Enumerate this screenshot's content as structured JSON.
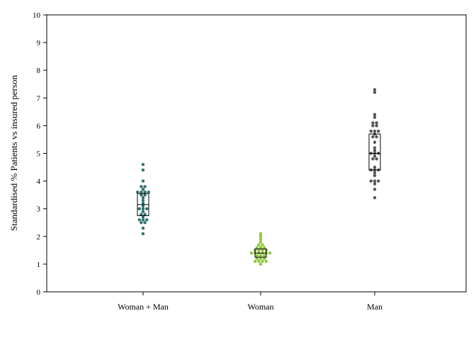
{
  "chart_data": {
    "type": "scatter",
    "subtype": "beeswarm-with-boxplot",
    "title": "",
    "xlabel": "",
    "ylabel": "Standardised % Patients vs insured person",
    "ylim": [
      0,
      10
    ],
    "yticks": [
      "0",
      "1",
      "2",
      "3",
      "4",
      "5",
      "6",
      "7",
      "8",
      "9",
      "10"
    ],
    "grid": false,
    "categories": [
      "Woman + Man",
      "Woman",
      "Man"
    ],
    "series": [
      {
        "category": "Woman + Man",
        "color": "#2e7272",
        "points": [
          4.6,
          4.4,
          4.0,
          3.8,
          3.8,
          3.7,
          3.6,
          3.6,
          3.6,
          3.6,
          3.5,
          3.5,
          3.4,
          3.3,
          3.2,
          3.1,
          3.0,
          3.0,
          3.0,
          2.9,
          2.8,
          2.8,
          2.7,
          2.6,
          2.6,
          2.6,
          2.5,
          2.5,
          2.3,
          2.1
        ],
        "box": {
          "q1": 2.75,
          "median": 3.15,
          "q3": 3.55
        }
      },
      {
        "category": "Woman",
        "color": "#8dc63f",
        "points": [
          2.1,
          2.0,
          1.9,
          1.8,
          1.7,
          1.7,
          1.6,
          1.6,
          1.6,
          1.5,
          1.5,
          1.5,
          1.5,
          1.4,
          1.4,
          1.4,
          1.4,
          1.4,
          1.4,
          1.3,
          1.3,
          1.3,
          1.2,
          1.2,
          1.2,
          1.1,
          1.1,
          1.1,
          1.1,
          1.0
        ],
        "box": {
          "q1": 1.25,
          "median": 1.4,
          "q3": 1.55
        }
      },
      {
        "category": "Man",
        "color": "#555555",
        "points": [
          7.3,
          7.2,
          6.4,
          6.3,
          6.1,
          6.1,
          6.0,
          6.0,
          5.8,
          5.8,
          5.8,
          5.7,
          5.6,
          5.6,
          5.4,
          5.2,
          5.1,
          5.0,
          5.0,
          5.0,
          4.9,
          4.8,
          4.8,
          4.5,
          4.4,
          4.4,
          4.4,
          4.3,
          4.2,
          4.0,
          4.0,
          4.0,
          3.9,
          3.7,
          3.4
        ],
        "box": {
          "q1": 4.4,
          "median": 5.0,
          "q3": 5.7
        }
      }
    ]
  }
}
